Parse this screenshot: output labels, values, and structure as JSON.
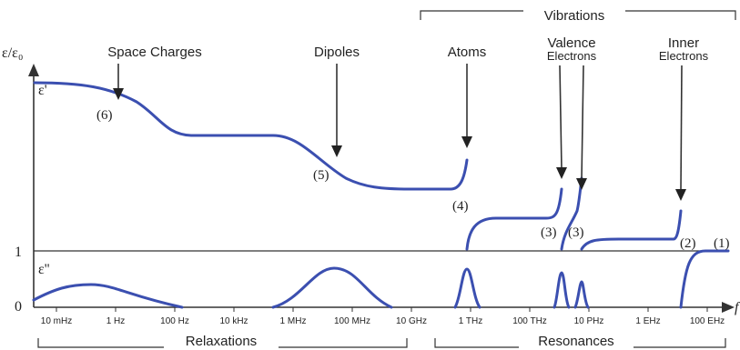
{
  "colors": {
    "curve": "#3b4fb0",
    "axis": "#333333",
    "text": "#222222"
  },
  "y_axis": {
    "label": "ε/ε₀",
    "one": "1",
    "zero": "0"
  },
  "curve_labels": {
    "eps_real": "ε'",
    "eps_imag": "ε''"
  },
  "x_ticks": [
    "10 mHz",
    "1 Hz",
    "100 Hz",
    "10 kHz",
    "1 MHz",
    "100 MHz",
    "10 GHz",
    "1 THz",
    "100 THz",
    "10 PHz",
    "1 EHz",
    "100 EHz"
  ],
  "top_bracket": "Vibrations",
  "bottom_brackets": {
    "relaxations": "Relaxations",
    "resonances": "Resonances"
  },
  "mechanisms": {
    "space_charges": "Space Charges",
    "dipoles": "Dipoles",
    "atoms": "Atoms",
    "valence_1": "Valence",
    "valence_2": "Electrons",
    "inner_1": "Inner",
    "inner_2": "Electrons"
  },
  "region_numbers": {
    "n6": "(6)",
    "n5": "(5)",
    "n4": "(4)",
    "n3a": "(3)",
    "n3b": "(3)",
    "n2": "(2)",
    "n1": "(1)"
  }
}
